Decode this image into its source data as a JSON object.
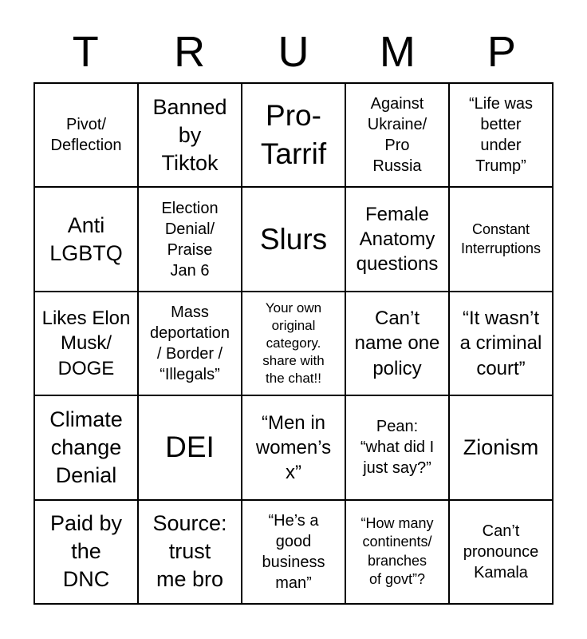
{
  "page": {
    "background_color": "#ffffff",
    "line_color": "#000000",
    "text_color": "#000000"
  },
  "title": {
    "word": "TRUMP",
    "letters": [
      "T",
      "R",
      "U",
      "M",
      "P"
    ]
  },
  "board": {
    "rows": [
      {
        "cells": [
          {
            "text": "Pivot/\nDeflection"
          },
          {
            "text": "Banned\nby\nTiktok"
          },
          {
            "text": "Pro-\nTarrif"
          },
          {
            "text": "Against\nUkraine/\nPro\nRussia"
          },
          {
            "text": "“Life was\nbetter\nunder\nTrump”"
          }
        ]
      },
      {
        "cells": [
          {
            "text": "Anti\nLGBTQ"
          },
          {
            "text": "Election\nDenial/\nPraise\nJan 6"
          },
          {
            "text": "Slurs"
          },
          {
            "text": "Female\nAnatomy\nquestions"
          },
          {
            "text": "Constant\nInterruptions"
          }
        ]
      },
      {
        "cells": [
          {
            "text": "Likes Elon\nMusk/\nDOGE"
          },
          {
            "text": "Mass\ndeportation\n/ Border /\n“Illegals”"
          },
          {
            "text": "Your own\noriginal\ncategory.\nshare with\nthe chat!!"
          },
          {
            "text": "Can’t\nname one\npolicy"
          },
          {
            "text": "“It wasn’t\na criminal\ncourt”"
          }
        ]
      },
      {
        "cells": [
          {
            "text": "Climate\nchange\nDenial"
          },
          {
            "text": "DEI"
          },
          {
            "text": "“Men in\nwomen’s\nx”"
          },
          {
            "text": "Pean:\n“what did I\njust say?”"
          },
          {
            "text": "Zionism"
          }
        ]
      },
      {
        "cells": [
          {
            "text": "Paid by\nthe\nDNC"
          },
          {
            "text": "Source:\ntrust\nme bro"
          },
          {
            "text": "“He’s a\ngood\nbusiness\nman”"
          },
          {
            "text": "“How many\ncontinents/\nbranches\nof govt”?"
          },
          {
            "text": "Can’t\npronounce\nKamala"
          }
        ]
      }
    ]
  }
}
